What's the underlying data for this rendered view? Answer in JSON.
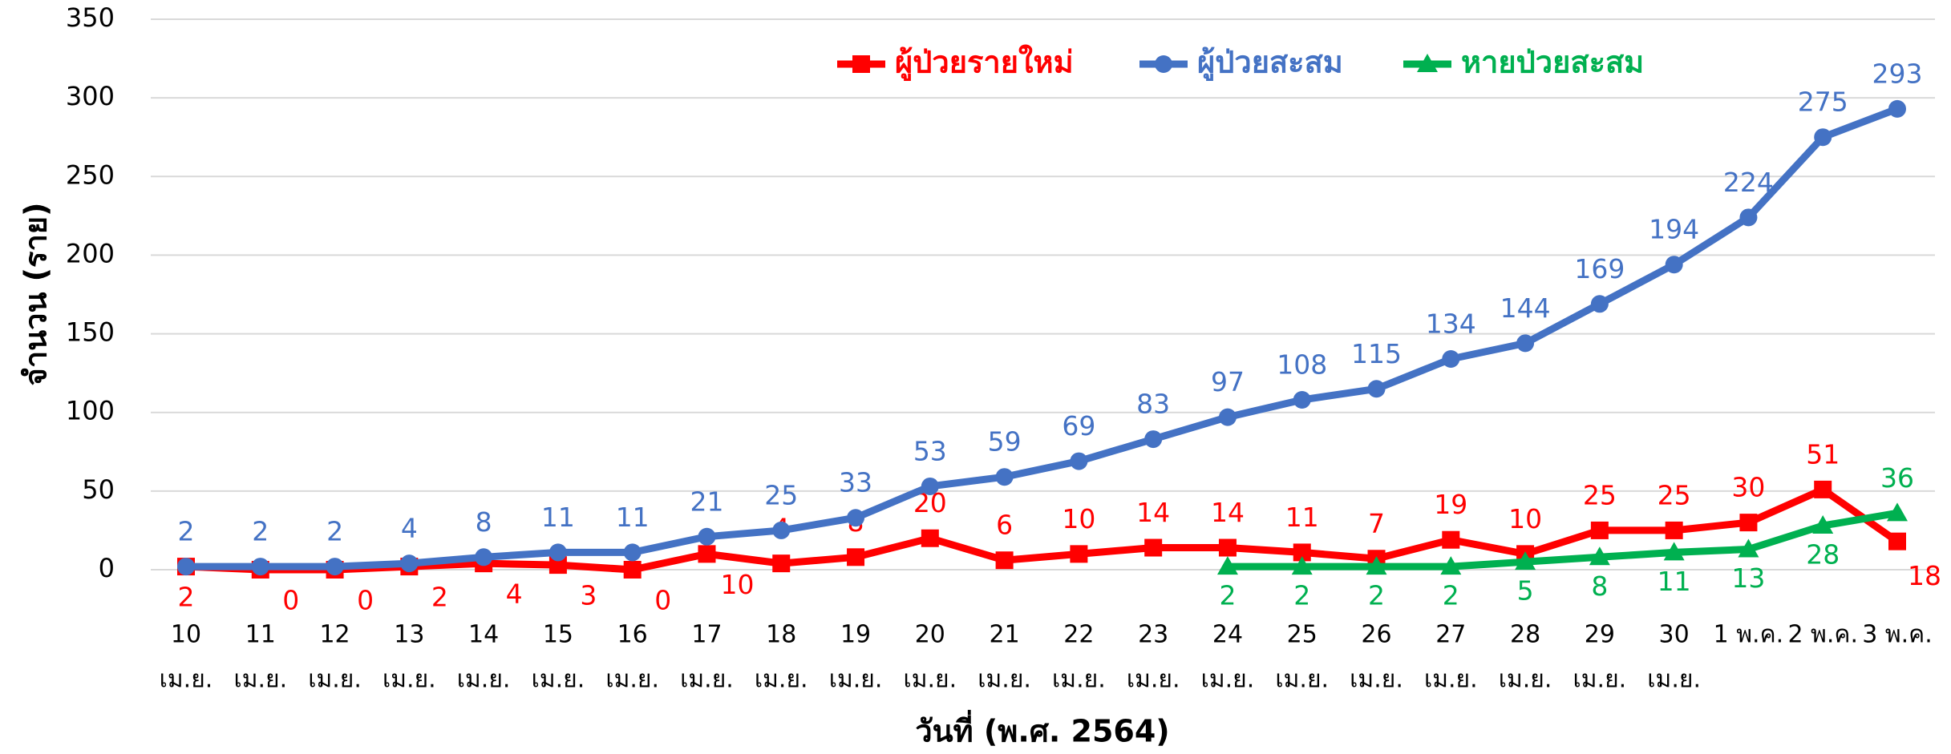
{
  "chart_data": {
    "type": "line",
    "ylabel": "จำนวน (ราย)",
    "xlabel": "วันที่ (พ.ศ. 2564)",
    "categories": [
      [
        "10",
        "เม.ย."
      ],
      [
        "11",
        "เม.ย."
      ],
      [
        "12",
        "เม.ย."
      ],
      [
        "13",
        "เม.ย."
      ],
      [
        "14",
        "เม.ย."
      ],
      [
        "15",
        "เม.ย."
      ],
      [
        "16",
        "เม.ย."
      ],
      [
        "17",
        "เม.ย."
      ],
      [
        "18",
        "เม.ย."
      ],
      [
        "19",
        "เม.ย."
      ],
      [
        "20",
        "เม.ย."
      ],
      [
        "21",
        "เม.ย."
      ],
      [
        "22",
        "เม.ย."
      ],
      [
        "23",
        "เม.ย."
      ],
      [
        "24",
        "เม.ย."
      ],
      [
        "25",
        "เม.ย."
      ],
      [
        "26",
        "เม.ย."
      ],
      [
        "27",
        "เม.ย."
      ],
      [
        "28",
        "เม.ย."
      ],
      [
        "29",
        "เม.ย."
      ],
      [
        "30",
        "เม.ย."
      ],
      [
        "1 พ.ค."
      ],
      [
        "2 พ.ค."
      ],
      [
        "3 พ.ค."
      ]
    ],
    "series": [
      {
        "name": "ผู้ป่วยรายใหม่",
        "color": "#ff0000",
        "marker": "square",
        "values": [
          2,
          0,
          0,
          2,
          4,
          3,
          0,
          10,
          4,
          8,
          20,
          6,
          10,
          14,
          14,
          11,
          7,
          19,
          10,
          25,
          25,
          30,
          51,
          18
        ]
      },
      {
        "name": "ผู้ป่วยสะสม",
        "color": "#4472c4",
        "marker": "circle",
        "values": [
          2,
          2,
          2,
          4,
          8,
          11,
          11,
          21,
          25,
          33,
          53,
          59,
          69,
          83,
          97,
          108,
          115,
          134,
          144,
          169,
          194,
          224,
          275,
          293
        ]
      },
      {
        "name": "หายป่วยสะสม",
        "color": "#00b050",
        "marker": "triangle",
        "values": [
          null,
          null,
          null,
          null,
          null,
          null,
          null,
          null,
          null,
          null,
          null,
          null,
          null,
          null,
          2,
          2,
          2,
          2,
          5,
          8,
          11,
          13,
          28,
          36
        ]
      }
    ],
    "ylim": [
      0,
      350
    ],
    "yticks": [
      0,
      50,
      100,
      150,
      200,
      250,
      300,
      350
    ],
    "grid": true,
    "legend": "top"
  }
}
